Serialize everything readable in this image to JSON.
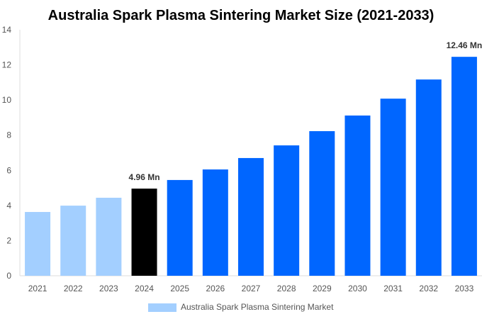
{
  "chart_data": {
    "type": "bar",
    "title": "Australia Spark Plasma Sintering Market Size (2021-2033)",
    "xlabel": "",
    "ylabel": "",
    "ylim": [
      0,
      14
    ],
    "yticks": [
      0,
      2,
      4,
      6,
      8,
      10,
      12,
      14
    ],
    "grid": false,
    "legend_position": "bottom",
    "categories": [
      "2021",
      "2022",
      "2023",
      "2024",
      "2025",
      "2026",
      "2027",
      "2028",
      "2029",
      "2030",
      "2031",
      "2032",
      "2033"
    ],
    "series": [
      {
        "name": "Australia Spark Plasma Sintering Market",
        "values": [
          3.63,
          3.99,
          4.44,
          4.96,
          5.45,
          6.05,
          6.7,
          7.42,
          8.23,
          9.12,
          10.08,
          11.17,
          12.46
        ]
      }
    ],
    "bar_colors": [
      "#a3cfff",
      "#a3cfff",
      "#a3cfff",
      "#000000",
      "#0066ff",
      "#0066ff",
      "#0066ff",
      "#0066ff",
      "#0066ff",
      "#0066ff",
      "#0066ff",
      "#0066ff",
      "#0066ff"
    ],
    "legend_color": "#a3cfff",
    "data_labels": [
      {
        "category": "2024",
        "text": "4.96 Mn"
      },
      {
        "category": "2033",
        "text": "12.46 Mn"
      }
    ]
  }
}
